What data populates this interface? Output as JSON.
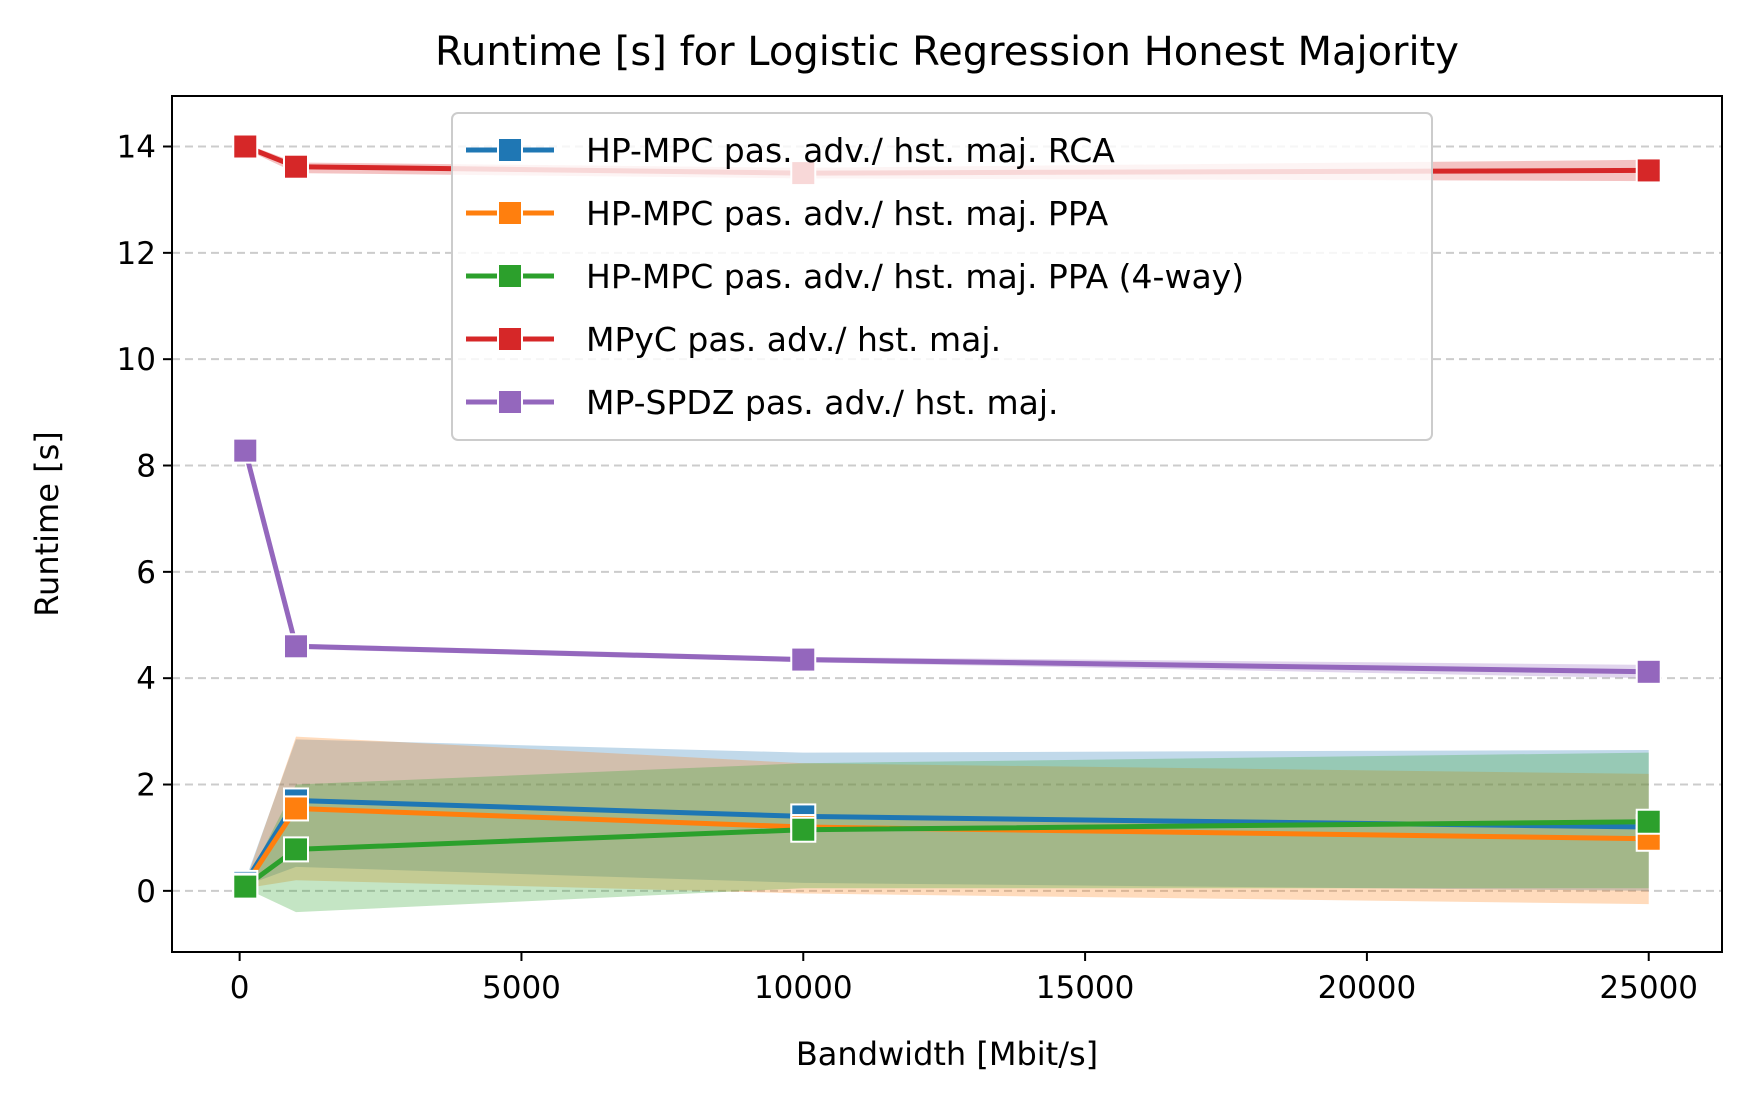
{
  "chart_data": {
    "type": "line",
    "title": "Runtime [s] for Logistic Regression Honest Majority",
    "xlabel": "Bandwidth [Mbit/s]",
    "ylabel": "Runtime [s]",
    "xlim": [
      -1200,
      26300
    ],
    "ylim": [
      -1.15,
      14.95
    ],
    "xticks": [
      0,
      5000,
      10000,
      15000,
      20000,
      25000
    ],
    "xtick_labels": [
      "0",
      "5000",
      "10000",
      "15000",
      "20000",
      "25000"
    ],
    "yticks": [
      0,
      2,
      4,
      6,
      8,
      10,
      12,
      14
    ],
    "ytick_labels": [
      "0",
      "2",
      "4",
      "6",
      "8",
      "10",
      "12",
      "14"
    ],
    "grid": "y-dashed",
    "legend_position": "top-center",
    "x": [
      100,
      1000,
      10000,
      25000
    ],
    "series": [
      {
        "name": "HP-MPC pas. adv./ hst. maj. RCA",
        "color": "#1f77b4",
        "values": [
          0.15,
          1.7,
          1.4,
          1.2
        ],
        "band_low": [
          0.1,
          0.45,
          0.15,
          0.0
        ],
        "band_high": [
          0.2,
          2.85,
          2.6,
          2.65
        ]
      },
      {
        "name": "HP-MPC pas. adv./ hst. maj. PPA",
        "color": "#ff7f0e",
        "values": [
          0.1,
          1.55,
          1.2,
          0.98
        ],
        "band_low": [
          0.05,
          0.2,
          -0.05,
          -0.25
        ],
        "band_high": [
          0.15,
          2.9,
          2.4,
          2.2
        ]
      },
      {
        "name": "HP-MPC pas. adv./ hst. maj. PPA (4-way)",
        "color": "#2ca02c",
        "values": [
          0.08,
          0.78,
          1.15,
          1.3
        ],
        "band_low": [
          0.05,
          -0.4,
          0.05,
          0.05
        ],
        "band_high": [
          0.12,
          2.0,
          2.4,
          2.6
        ]
      },
      {
        "name": "MPyC pas. adv./ hst. maj.",
        "color": "#d62728",
        "values": [
          14.0,
          13.62,
          13.5,
          13.55
        ],
        "band_low": [
          13.95,
          13.5,
          13.4,
          13.35
        ],
        "band_high": [
          14.05,
          13.7,
          13.6,
          13.75
        ]
      },
      {
        "name": "MP-SPDZ pas. adv./ hst. maj.",
        "color": "#9467bd",
        "values": [
          8.28,
          4.6,
          4.35,
          4.12
        ],
        "band_low": [
          8.24,
          4.55,
          4.3,
          4.0
        ],
        "band_high": [
          8.32,
          4.65,
          4.4,
          4.25
        ]
      }
    ]
  }
}
